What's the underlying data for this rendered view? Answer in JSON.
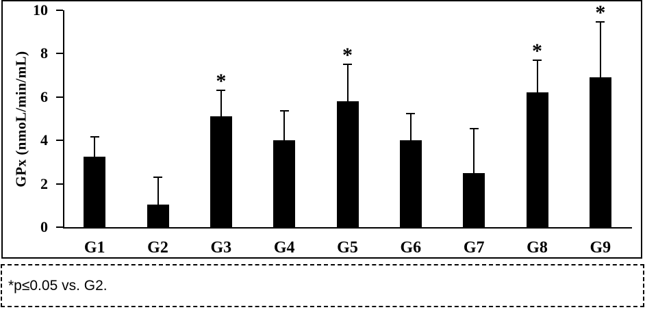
{
  "figure": {
    "footnote": "*p≤0.05 vs. G2."
  },
  "chart_data": {
    "type": "bar",
    "categories": [
      "G1",
      "G2",
      "G3",
      "G4",
      "G5",
      "G6",
      "G7",
      "G8",
      "G9"
    ],
    "values": [
      3.25,
      1.05,
      5.1,
      4.0,
      5.8,
      4.0,
      2.5,
      6.2,
      6.9
    ],
    "errors": [
      0.9,
      1.25,
      1.2,
      1.35,
      1.7,
      1.25,
      2.05,
      1.5,
      2.55
    ],
    "significant": [
      false,
      false,
      true,
      false,
      true,
      false,
      false,
      true,
      true
    ],
    "significance_marker": "*",
    "title": "",
    "xlabel": "",
    "ylabel": "GPx (nmoL/min/mL)",
    "ylim": [
      0,
      10
    ],
    "yticks": [
      0,
      2,
      4,
      6,
      8,
      10
    ],
    "bar_color": "#000000",
    "axis_color": "#000000",
    "grid": false,
    "legend": false
  }
}
